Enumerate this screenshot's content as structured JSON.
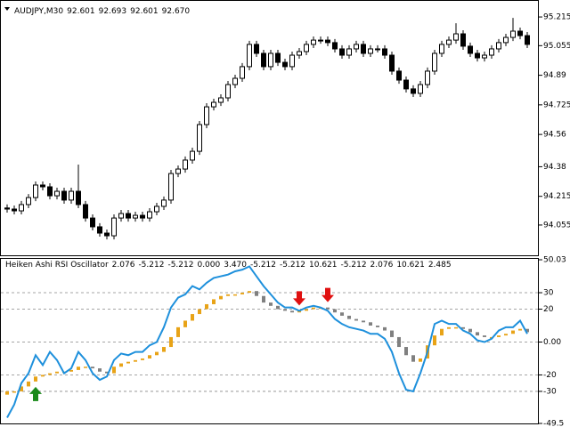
{
  "chart_data": [
    {
      "type": "candlestick",
      "title": "AUDJPY,M30",
      "title_values": [
        "92.601",
        "92.693",
        "92.601",
        "92.670"
      ],
      "bull_color": "#ffffff",
      "bear_color": "#000000",
      "open": [
        94.15,
        94.144,
        94.134,
        94.169,
        94.208,
        94.278,
        94.268,
        94.218,
        94.243,
        94.194,
        94.243,
        94.169,
        94.094,
        94.045,
        94.01,
        93.995,
        94.094,
        94.119,
        94.094,
        94.109,
        94.094,
        94.129,
        94.159,
        94.194,
        94.342,
        94.367,
        94.417,
        94.466,
        94.615,
        94.714,
        94.739,
        94.764,
        94.838,
        94.873,
        94.938,
        95.062,
        95.012,
        94.938,
        95.012,
        94.962,
        94.938,
        95.002,
        95.022,
        95.062,
        95.086,
        95.086,
        95.072,
        95.037,
        95.002,
        95.037,
        95.062,
        95.012,
        95.037,
        95.037,
        95.002,
        94.913,
        94.863,
        94.814,
        94.789,
        94.838,
        94.913,
        95.012,
        95.062,
        95.086,
        95.121,
        95.052,
        95.012,
        94.987,
        95.002,
        95.037,
        95.072,
        95.101,
        95.136,
        95.111
      ],
      "high": [
        94.17,
        94.164,
        94.189,
        94.228,
        94.298,
        94.298,
        94.288,
        94.263,
        94.263,
        94.263,
        94.392,
        94.189,
        94.114,
        94.065,
        94.03,
        94.114,
        94.139,
        94.139,
        94.129,
        94.129,
        94.149,
        94.179,
        94.214,
        94.362,
        94.387,
        94.437,
        94.486,
        94.635,
        94.734,
        94.759,
        94.784,
        94.858,
        94.893,
        94.958,
        95.082,
        95.082,
        95.032,
        95.032,
        95.032,
        94.982,
        95.022,
        95.042,
        95.082,
        95.106,
        95.106,
        95.106,
        95.092,
        95.057,
        95.057,
        95.082,
        95.082,
        95.057,
        95.057,
        95.057,
        95.022,
        94.933,
        94.883,
        94.834,
        94.858,
        94.933,
        95.032,
        95.082,
        95.106,
        95.18,
        95.141,
        95.072,
        95.032,
        95.022,
        95.057,
        95.092,
        95.121,
        95.21,
        95.156,
        95.131
      ],
      "low": [
        94.124,
        94.114,
        94.114,
        94.149,
        94.188,
        94.248,
        94.198,
        94.198,
        94.174,
        94.174,
        94.149,
        94.074,
        94.025,
        93.99,
        93.975,
        93.975,
        94.074,
        94.074,
        94.074,
        94.074,
        94.074,
        94.109,
        94.139,
        94.174,
        94.322,
        94.347,
        94.397,
        94.446,
        94.595,
        94.694,
        94.719,
        94.744,
        94.818,
        94.853,
        94.918,
        94.992,
        94.918,
        94.918,
        94.942,
        94.918,
        94.918,
        94.982,
        95.002,
        95.042,
        95.066,
        95.052,
        95.017,
        94.982,
        94.982,
        95.017,
        94.992,
        94.992,
        95.017,
        94.982,
        94.893,
        94.843,
        94.794,
        94.769,
        94.769,
        94.818,
        94.893,
        94.992,
        95.042,
        95.066,
        95.032,
        94.992,
        94.967,
        94.967,
        94.982,
        95.017,
        95.052,
        95.081,
        95.091,
        95.042
      ],
      "close": [
        94.144,
        94.134,
        94.169,
        94.208,
        94.278,
        94.268,
        94.218,
        94.243,
        94.194,
        94.243,
        94.169,
        94.094,
        94.045,
        94.01,
        93.995,
        94.094,
        94.119,
        94.094,
        94.109,
        94.094,
        94.129,
        94.159,
        94.194,
        94.342,
        94.367,
        94.417,
        94.466,
        94.615,
        94.714,
        94.739,
        94.764,
        94.838,
        94.873,
        94.938,
        95.062,
        95.012,
        94.938,
        95.012,
        94.962,
        94.938,
        95.002,
        95.022,
        95.062,
        95.086,
        95.086,
        95.072,
        95.037,
        95.002,
        95.037,
        95.062,
        95.012,
        95.037,
        95.037,
        95.002,
        94.913,
        94.863,
        94.814,
        94.789,
        94.838,
        94.913,
        95.012,
        95.062,
        95.086,
        95.121,
        95.052,
        95.012,
        94.987,
        95.002,
        95.037,
        95.072,
        95.101,
        95.136,
        95.111,
        95.062
      ],
      "ylim": [
        93.896,
        95.26
      ],
      "yticks": [
        94.055,
        94.215,
        94.38,
        94.56,
        94.725,
        94.89,
        95.055,
        95.215
      ]
    },
    {
      "type": "heiken-ashi-oscillator",
      "title": "Heiken Ashi RSI Oscillator",
      "title_values": [
        "2.076",
        "-5.212",
        "-5.212",
        "0.000",
        "3.470",
        "-5.212",
        "-5.212",
        "10.621",
        "-5.212",
        "2.076",
        "10.621",
        "2.485"
      ],
      "up_color": "#e8a317",
      "down_color": "#808080",
      "grid": "dashed",
      "open": [
        -32,
        -30,
        -30,
        -27,
        -24,
        -21,
        -20,
        -19,
        -18,
        -18,
        -17,
        -15,
        -15,
        -16,
        -18,
        -19,
        -15,
        -13,
        -12,
        -11,
        -10,
        -8,
        -6,
        -3,
        3,
        9,
        13,
        17,
        20,
        23,
        26,
        28,
        29,
        29,
        30,
        31,
        28,
        24,
        22,
        20,
        19,
        18,
        19,
        20,
        21,
        21,
        20,
        18,
        16,
        14,
        13,
        12,
        10,
        9,
        7,
        3,
        -3,
        -8,
        -12,
        -10,
        -2,
        4,
        8,
        9,
        9,
        8,
        6,
        4,
        3,
        3,
        4,
        5,
        7,
        8
      ],
      "close": [
        -30,
        -30,
        -27,
        -24,
        -21,
        -20,
        -19,
        -18,
        -18,
        -17,
        -15,
        -15,
        -16,
        -18,
        -19,
        -15,
        -13,
        -12,
        -11,
        -10,
        -8,
        -6,
        -3,
        3,
        9,
        13,
        17,
        20,
        23,
        26,
        28,
        29,
        29,
        30,
        31,
        28,
        24,
        22,
        20,
        19,
        18,
        19,
        20,
        21,
        21,
        20,
        18,
        16,
        14,
        13,
        12,
        10,
        9,
        7,
        3,
        -3,
        -8,
        -12,
        -10,
        -2,
        4,
        8,
        9,
        9,
        8,
        6,
        4,
        3,
        3,
        4,
        5,
        7,
        8,
        6
      ],
      "line": {
        "color": "#1e90dc",
        "values": [
          -46,
          -38,
          -25,
          -19,
          -8,
          -14,
          -6,
          -11,
          -19,
          -16,
          -6,
          -11,
          -19,
          -23,
          -21,
          -11,
          -7,
          -8,
          -6,
          -6,
          -2,
          0,
          9,
          21,
          27,
          29,
          34,
          32,
          36,
          39,
          40,
          41,
          43,
          44,
          46,
          40,
          34,
          29,
          24,
          21,
          21,
          19,
          21,
          22,
          21,
          19,
          14,
          11,
          9,
          8,
          7,
          5,
          5,
          2,
          -6,
          -19,
          -29,
          -30,
          -19,
          -6,
          11,
          13,
          11,
          11,
          7,
          5,
          1,
          0,
          2,
          7,
          9,
          9,
          13,
          5
        ]
      },
      "signals": {
        "buy": [
          4
        ],
        "sell": [
          41,
          45
        ],
        "buy_color": "#1a8a1a",
        "sell_color": "#e01010"
      },
      "ylim": [
        -49.5,
        50.03
      ],
      "yticks": [
        50.03,
        30,
        20,
        {
          "value": 0,
          "label": "0.00"
        },
        -20,
        -30,
        -49.5
      ]
    }
  ]
}
